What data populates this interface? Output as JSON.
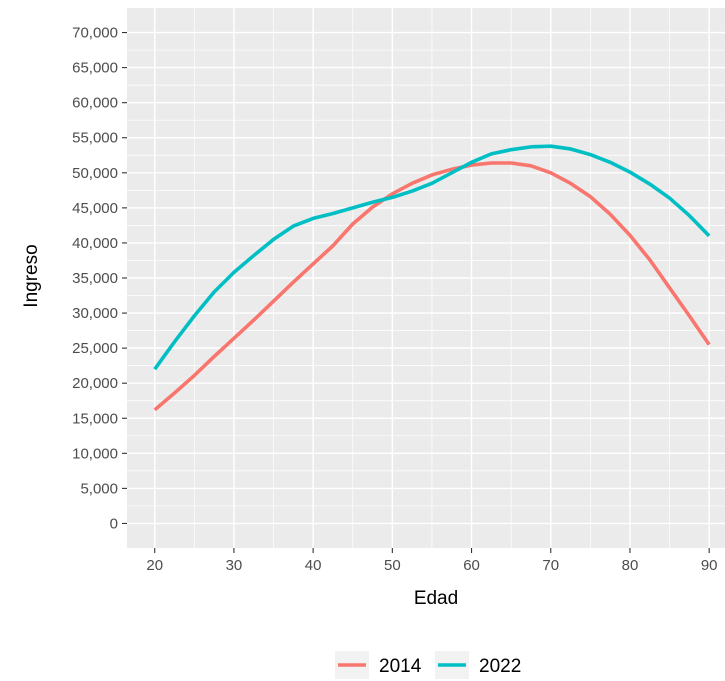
{
  "chart_data": {
    "type": "line",
    "title": "",
    "xlabel": "Edad",
    "ylabel": "Ingreso",
    "xlim": [
      16.5,
      92
    ],
    "ylim": [
      -3500,
      73500
    ],
    "grid": true,
    "legend_position": "bottom",
    "x_ticks": [
      20,
      30,
      40,
      50,
      60,
      70,
      80,
      90
    ],
    "x_tick_labels": [
      "20",
      "30",
      "40",
      "50",
      "60",
      "70",
      "80",
      "90"
    ],
    "y_ticks": [
      0,
      5000,
      10000,
      15000,
      20000,
      25000,
      30000,
      35000,
      40000,
      45000,
      50000,
      55000,
      60000,
      65000,
      70000
    ],
    "y_tick_labels": [
      "0",
      "5,000",
      "10,000",
      "15,000",
      "20,000",
      "25,000",
      "30,000",
      "35,000",
      "40,000",
      "45,000",
      "50,000",
      "55,000",
      "60,000",
      "65,000",
      "70,000"
    ],
    "series": [
      {
        "name": "2014",
        "color": "#F8766D",
        "x": [
          20,
          22.5,
          25,
          27.5,
          30,
          32.5,
          35,
          37.5,
          40,
          42.5,
          45,
          47.5,
          50,
          52.5,
          55,
          57.5,
          60,
          62.5,
          65,
          67.5,
          70,
          72.5,
          75,
          77.5,
          80,
          82.5,
          85,
          87.5,
          90
        ],
        "y": [
          16200,
          18600,
          21100,
          23800,
          26400,
          29000,
          31700,
          34400,
          37000,
          39600,
          42700,
          45100,
          47000,
          48500,
          49700,
          50500,
          51100,
          51400,
          51400,
          51000,
          50000,
          48500,
          46600,
          44100,
          41100,
          37600,
          33600,
          29600,
          25500
        ]
      },
      {
        "name": "2022",
        "color": "#00BFC4",
        "x": [
          20,
          22.5,
          25,
          27.5,
          30,
          32.5,
          35,
          37.5,
          40,
          42.5,
          45,
          47.5,
          50,
          52.5,
          55,
          57.5,
          60,
          62.5,
          65,
          67.5,
          70,
          72.5,
          75,
          77.5,
          80,
          82.5,
          85,
          87.5,
          90
        ],
        "y": [
          22000,
          25900,
          29600,
          33000,
          35800,
          38200,
          40500,
          42400,
          43500,
          44200,
          45000,
          45800,
          46500,
          47400,
          48500,
          50000,
          51500,
          52700,
          53300,
          53700,
          53800,
          53400,
          52600,
          51500,
          50100,
          48400,
          46400,
          43900,
          41000
        ]
      }
    ]
  }
}
